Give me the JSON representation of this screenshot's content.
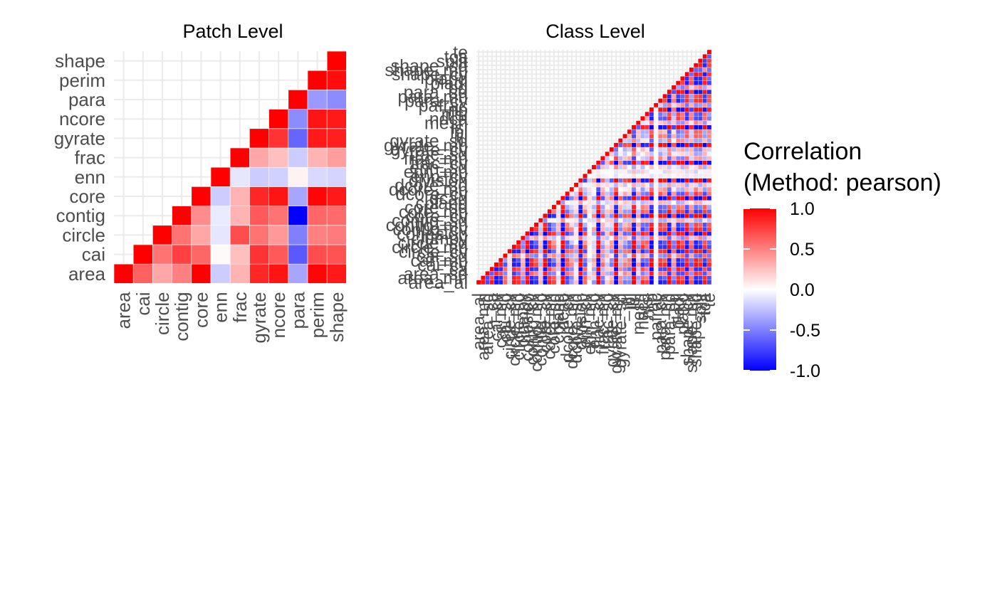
{
  "chart_data": [
    {
      "type": "heatmap",
      "title": "Patch Level",
      "variables": [
        "area",
        "cai",
        "circle",
        "contig",
        "core",
        "enn",
        "frac",
        "gyrate",
        "ncore",
        "para",
        "perim",
        "shape"
      ],
      "matrix": [
        [
          1.0,
          0.62,
          0.35,
          0.5,
          1.0,
          -0.2,
          0.3,
          0.85,
          0.92,
          -0.35,
          0.98,
          0.9
        ],
        [
          null,
          1.0,
          0.55,
          0.75,
          0.6,
          0.02,
          0.25,
          0.8,
          0.65,
          -0.65,
          0.7,
          0.68
        ],
        [
          null,
          null,
          1.0,
          0.55,
          0.35,
          -0.1,
          0.7,
          0.55,
          0.4,
          -0.5,
          0.5,
          0.52
        ],
        [
          null,
          null,
          null,
          1.0,
          0.45,
          -0.08,
          0.3,
          0.65,
          0.55,
          -1.0,
          0.6,
          0.58
        ],
        [
          null,
          null,
          null,
          null,
          1.0,
          -0.2,
          0.3,
          0.85,
          0.92,
          -0.35,
          0.98,
          0.9
        ],
        [
          null,
          null,
          null,
          null,
          null,
          1.0,
          -0.1,
          -0.2,
          -0.18,
          0.05,
          -0.15,
          -0.17
        ],
        [
          null,
          null,
          null,
          null,
          null,
          null,
          1.0,
          0.35,
          0.25,
          -0.2,
          0.3,
          0.38
        ],
        [
          null,
          null,
          null,
          null,
          null,
          null,
          null,
          1.0,
          0.8,
          -0.6,
          0.9,
          0.88
        ],
        [
          null,
          null,
          null,
          null,
          null,
          null,
          null,
          null,
          1.0,
          -0.45,
          0.92,
          0.9
        ],
        [
          null,
          null,
          null,
          null,
          null,
          null,
          null,
          null,
          null,
          1.0,
          -0.4,
          -0.45
        ],
        [
          null,
          null,
          null,
          null,
          null,
          null,
          null,
          null,
          null,
          null,
          1.0,
          0.95
        ],
        [
          null,
          null,
          null,
          null,
          null,
          null,
          null,
          null,
          null,
          null,
          null,
          1.0
        ]
      ]
    },
    {
      "type": "heatmap",
      "title": "Class Level",
      "variables": [
        "area_al",
        "area_mn",
        "area_sd",
        "ca",
        "cai_cv",
        "cai_mn",
        "cai_sd",
        "circle_cv",
        "circle_mn",
        "circle_sd",
        "clumpy",
        "cohesion",
        "contig_cv",
        "contig_mn",
        "contig_sd",
        "core_cv",
        "core_mn",
        "core_sd",
        "cpland",
        "dcad",
        "dcore_cv",
        "dcore_mn",
        "dcore_sd",
        "division",
        "enn_cv",
        "enn_mn",
        "enn_sd",
        "frac_cv",
        "frac_mn",
        "frac_sd",
        "gyrate_cv",
        "gyrate_mn",
        "gyrate_sd",
        "iji",
        "lpi",
        "lsi",
        "mesh",
        "ndca",
        "nlsi",
        "np",
        "pafrac",
        "para_cv",
        "para_mn",
        "para_sd",
        "pd",
        "pladj",
        "pland",
        "shape_cv",
        "shape_mn",
        "shape_sd",
        "split",
        "tca",
        "te"
      ],
      "color_scale": "blue-white-red, mixed correlations, lower-triangle display"
    }
  ],
  "legend": {
    "title_line1": "Correlation",
    "title_line2": "(Method: pearson)",
    "tick_labels": [
      "1.0",
      "0.5",
      "0.0",
      "-0.5",
      "-1.0"
    ],
    "tick_values": [
      1.0,
      0.5,
      0.0,
      -0.5,
      -1.0
    ],
    "colors": {
      "low": "#0000ff",
      "mid": "#ffffff",
      "high": "#ff0000"
    }
  }
}
